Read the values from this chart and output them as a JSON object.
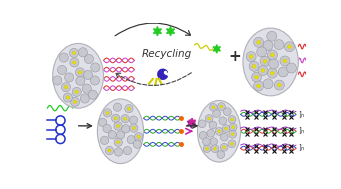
{
  "bg_color": "#ffffff",
  "recycling_text": "Recycling",
  "plus_text": "+",
  "graphene_color": "#e0e0e8",
  "graphene_outline": "#b0b0b8",
  "gold_color": "#e8e000",
  "gold_outline": "#c0b800",
  "ball_color": "#c8c8d0",
  "ball_outline": "#909098",
  "dna_red": "#e03030",
  "dna_pink": "#cc44cc",
  "dna_blue": "#3344cc",
  "dna_green": "#22aa22",
  "dna_yellow": "#cccc00",
  "aptamer_green": "#22cc22",
  "enzyme_blue": "#3322bb",
  "arrow_color": "#333333",
  "yellow_frag": "#cccc00",
  "hairpin_blue": "#2233cc",
  "signal_purple": "#9922cc",
  "signal_pink": "#cc22aa"
}
